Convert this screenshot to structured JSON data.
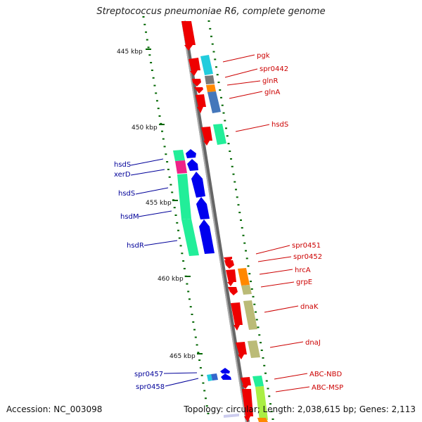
{
  "title": "Streptococcus pneumoniae R6, complete genome",
  "footer": {
    "accession": "Accession: NC_003098",
    "summary": "Topology: circular; Length: 2,038,615 bp; Genes: 2,113"
  },
  "colors": {
    "forward_label": "#cc0000",
    "reverse_label": "#000099",
    "backbone": "#888888",
    "tick": "#006600",
    "forward_cds": "#ee0000",
    "reverse_cds": "#0000ee"
  },
  "ruler": [
    {
      "label": "445 kbp"
    },
    {
      "label": "450 kbp"
    },
    {
      "label": "455 kbp"
    },
    {
      "label": "460 kbp"
    },
    {
      "label": "465 kbp"
    }
  ],
  "forward_labels": [
    {
      "text": "pgk"
    },
    {
      "text": "spr0442"
    },
    {
      "text": "glnR"
    },
    {
      "text": "glnA"
    },
    {
      "text": "hsdS"
    },
    {
      "text": "spr0451"
    },
    {
      "text": "spr0452"
    },
    {
      "text": "hrcA"
    },
    {
      "text": "grpE"
    },
    {
      "text": "dnaK"
    },
    {
      "text": "dnaJ"
    },
    {
      "text": "ABC-NBD"
    },
    {
      "text": "ABC-MSP"
    }
  ],
  "reverse_labels": [
    {
      "text": "hsdS"
    },
    {
      "text": "xerD"
    },
    {
      "text": "hsdS"
    },
    {
      "text": "hsdM"
    },
    {
      "text": "hsdR"
    },
    {
      "text": "spr0457"
    },
    {
      "text": "spr0458"
    }
  ]
}
